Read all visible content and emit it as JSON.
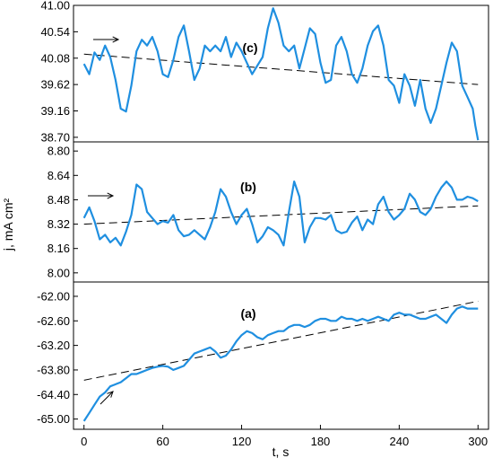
{
  "chart_data": {
    "type": "line",
    "ylabel": "j, mA cm²",
    "xlabel": "t, s",
    "x_ticks": [
      "0",
      "60",
      "120",
      "180",
      "240",
      "300"
    ],
    "xlim": [
      -8,
      308
    ],
    "panels": [
      {
        "label": "(c)",
        "ylim": [
          38.62,
          41.0
        ],
        "y_ticks": [
          "41.00",
          "40.54",
          "40.08",
          "39.62",
          "39.16",
          "38.70"
        ],
        "series": [
          {
            "x": [
              0,
              4,
              8,
              12,
              16,
              20,
              24,
              28,
              32,
              36,
              40,
              44,
              48,
              52,
              56,
              60,
              64,
              68,
              72,
              76,
              80,
              84,
              88,
              92,
              96,
              100,
              104,
              108,
              112,
              116,
              120,
              124,
              128,
              132,
              136,
              140,
              144,
              148,
              152,
              156,
              160,
              164,
              168,
              172,
              176,
              180,
              184,
              188,
              192,
              196,
              200,
              204,
              208,
              212,
              216,
              220,
              224,
              228,
              232,
              236,
              240,
              244,
              248,
              252,
              256,
              260,
              264,
              268,
              272,
              276,
              280,
              284,
              288,
              292,
              296,
              298,
              300
            ],
            "y": [
              39.98,
              39.8,
              40.18,
              40.05,
              40.3,
              40.1,
              39.7,
              39.2,
              39.15,
              39.6,
              40.2,
              40.4,
              40.3,
              40.45,
              40.2,
              39.8,
              39.75,
              40.05,
              40.45,
              40.65,
              40.2,
              39.7,
              39.9,
              40.3,
              40.2,
              40.3,
              40.2,
              40.45,
              40.1,
              40.35,
              40.2,
              40.0,
              39.8,
              39.95,
              40.1,
              40.6,
              40.95,
              40.7,
              40.3,
              40.2,
              40.3,
              39.9,
              40.25,
              40.6,
              40.5,
              40.0,
              39.65,
              39.7,
              40.3,
              40.45,
              40.2,
              39.8,
              39.65,
              39.9,
              40.3,
              40.55,
              40.65,
              40.3,
              39.7,
              39.6,
              39.3,
              39.8,
              39.6,
              39.25,
              39.7,
              39.2,
              38.95,
              39.2,
              39.6,
              40.0,
              40.35,
              40.2,
              39.6,
              39.4,
              39.2,
              38.9,
              38.65
            ]
          }
        ],
        "trend": {
          "x": [
            0,
            300
          ],
          "y": [
            40.15,
            39.62
          ]
        }
      },
      {
        "label": "(b)",
        "ylim": [
          7.94,
          8.86
        ],
        "y_ticks": [
          "8.80",
          "8.64",
          "8.48",
          "8.32",
          "8.16",
          "8.00"
        ],
        "series": [
          {
            "x": [
              0,
              4,
              8,
              12,
              16,
              20,
              24,
              28,
              32,
              36,
              40,
              44,
              48,
              52,
              56,
              60,
              64,
              68,
              72,
              76,
              80,
              84,
              88,
              92,
              96,
              100,
              104,
              108,
              112,
              116,
              120,
              124,
              128,
              132,
              136,
              140,
              144,
              148,
              152,
              156,
              160,
              164,
              168,
              172,
              176,
              180,
              184,
              188,
              192,
              196,
              200,
              204,
              208,
              212,
              216,
              220,
              224,
              228,
              232,
              236,
              240,
              244,
              248,
              252,
              256,
              260,
              264,
              268,
              272,
              276,
              280,
              284,
              288,
              292,
              296,
              300
            ],
            "y": [
              8.36,
              8.43,
              8.34,
              8.22,
              8.25,
              8.2,
              8.23,
              8.18,
              8.27,
              8.38,
              8.58,
              8.55,
              8.4,
              8.36,
              8.32,
              8.34,
              8.33,
              8.38,
              8.28,
              8.24,
              8.25,
              8.28,
              8.25,
              8.22,
              8.3,
              8.4,
              8.55,
              8.5,
              8.4,
              8.32,
              8.38,
              8.42,
              8.32,
              8.2,
              8.24,
              8.3,
              8.28,
              8.25,
              8.18,
              8.4,
              8.6,
              8.5,
              8.2,
              8.3,
              8.36,
              8.36,
              8.35,
              8.38,
              8.28,
              8.26,
              8.27,
              8.33,
              8.37,
              8.28,
              8.35,
              8.32,
              8.45,
              8.5,
              8.4,
              8.35,
              8.38,
              8.42,
              8.52,
              8.48,
              8.4,
              8.38,
              8.42,
              8.5,
              8.56,
              8.6,
              8.56,
              8.48,
              8.48,
              8.5,
              8.49,
              8.47
            ]
          }
        ],
        "trend": {
          "x": [
            0,
            300
          ],
          "y": [
            8.32,
            8.44
          ]
        }
      },
      {
        "label": "(a)",
        "ylim": [
          -65.25,
          -61.65
        ],
        "y_ticks": [
          "-62.00",
          "-62.60",
          "-63.20",
          "-63.80",
          "-64.40",
          "-65.00"
        ],
        "series": [
          {
            "x": [
              0,
              4,
              8,
              12,
              16,
              20,
              24,
              28,
              32,
              36,
              40,
              44,
              48,
              52,
              56,
              60,
              64,
              68,
              72,
              76,
              80,
              84,
              88,
              92,
              96,
              100,
              104,
              108,
              112,
              116,
              120,
              124,
              128,
              132,
              136,
              140,
              144,
              148,
              152,
              156,
              160,
              164,
              168,
              172,
              176,
              180,
              184,
              188,
              192,
              196,
              200,
              204,
              208,
              212,
              216,
              220,
              224,
              228,
              232,
              236,
              240,
              244,
              248,
              252,
              256,
              260,
              264,
              268,
              272,
              276,
              280,
              284,
              288,
              292,
              296,
              300
            ],
            "y": [
              -65.05,
              -64.85,
              -64.65,
              -64.45,
              -64.35,
              -64.2,
              -64.15,
              -64.1,
              -64.0,
              -63.9,
              -63.9,
              -63.85,
              -63.8,
              -63.75,
              -63.72,
              -63.7,
              -63.72,
              -63.8,
              -63.75,
              -63.7,
              -63.55,
              -63.4,
              -63.35,
              -63.3,
              -63.25,
              -63.35,
              -63.5,
              -63.45,
              -63.3,
              -63.1,
              -62.95,
              -62.85,
              -62.9,
              -63.0,
              -63.05,
              -62.95,
              -62.9,
              -62.85,
              -62.85,
              -62.75,
              -62.7,
              -62.7,
              -62.75,
              -62.7,
              -62.6,
              -62.55,
              -62.55,
              -62.6,
              -62.6,
              -62.5,
              -62.55,
              -62.55,
              -62.6,
              -62.55,
              -62.6,
              -62.55,
              -62.5,
              -62.55,
              -62.6,
              -62.45,
              -62.4,
              -62.45,
              -62.45,
              -62.5,
              -62.55,
              -62.55,
              -62.5,
              -62.45,
              -62.55,
              -62.65,
              -62.45,
              -62.3,
              -62.25,
              -62.3,
              -62.3,
              -62.3
            ]
          }
        ],
        "trend": {
          "x": [
            0,
            300
          ],
          "y": [
            -64.05,
            -62.12
          ]
        }
      }
    ]
  }
}
